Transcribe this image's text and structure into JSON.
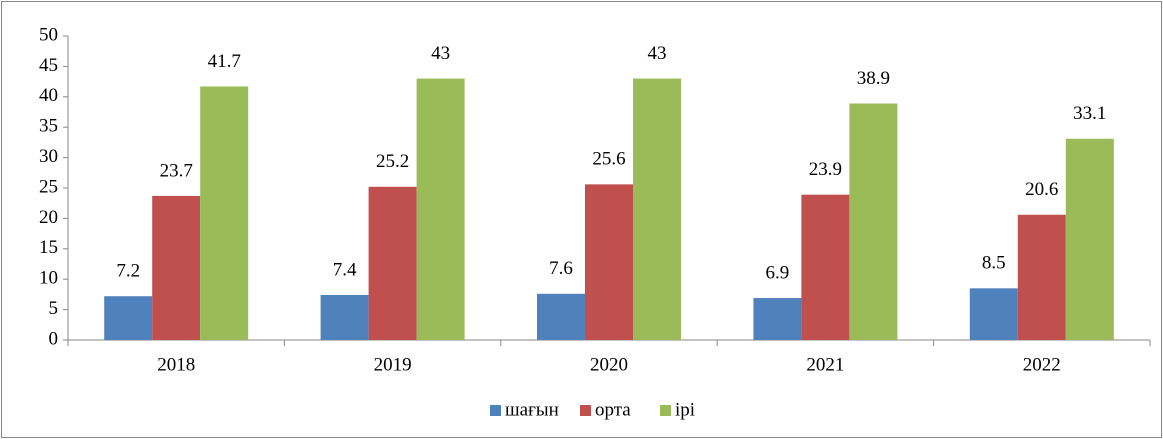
{
  "chart_data": {
    "type": "bar",
    "categories": [
      "2018",
      "2019",
      "2020",
      "2021",
      "2022"
    ],
    "series": [
      {
        "name": "шағын",
        "color": "#4f81bd",
        "values": [
          7.2,
          7.4,
          7.6,
          6.9,
          8.5
        ]
      },
      {
        "name": "орта",
        "color": "#c0504d",
        "values": [
          23.7,
          25.2,
          25.6,
          23.9,
          20.6
        ]
      },
      {
        "name": "ірі",
        "color": "#9bbb59",
        "values": [
          41.7,
          43,
          43,
          38.9,
          33.1
        ]
      }
    ],
    "ylim": [
      0,
      50
    ],
    "yticks": [
      0,
      5,
      10,
      15,
      20,
      25,
      30,
      35,
      40,
      45,
      50
    ],
    "grid": false,
    "legend": "bottom",
    "data_labels": true
  }
}
